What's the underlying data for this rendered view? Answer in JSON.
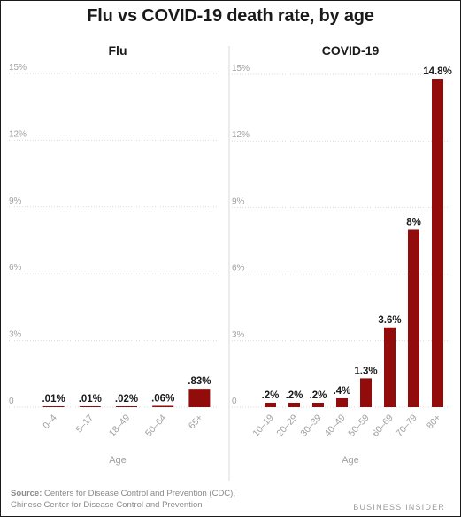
{
  "title": "Flu vs COVID-19 death rate, by age",
  "source": {
    "label": "Source:",
    "line1": "Centers for Disease Control and Prevention (CDC),",
    "line2": "Chinese Center for Disease Control and Prevention"
  },
  "brand": "BUSINESS INSIDER",
  "colors": {
    "bar": "#930c0c",
    "grid": "#d9d9d9",
    "axis_text": "#a0a0a0"
  },
  "chart_data": [
    {
      "type": "bar",
      "title": "Flu",
      "xlabel": "Age",
      "ylabel": "",
      "ylim": [
        0,
        15
      ],
      "yticks": [
        0,
        3,
        6,
        9,
        12,
        15
      ],
      "ytick_labels": [
        "0",
        "3%",
        "6%",
        "9%",
        "12%",
        "15%"
      ],
      "grid": true,
      "categories": [
        "0–4",
        "5–17",
        "18–49",
        "50–64",
        "65+"
      ],
      "values": [
        0.01,
        0.01,
        0.02,
        0.06,
        0.83
      ],
      "data_labels": [
        ".01%",
        ".01%",
        ".02%",
        ".06%",
        ".83%"
      ]
    },
    {
      "type": "bar",
      "title": "COVID-19",
      "xlabel": "Age",
      "ylabel": "",
      "ylim": [
        0,
        15
      ],
      "yticks": [
        0,
        3,
        6,
        9,
        12,
        15
      ],
      "ytick_labels": [
        "0",
        "3%",
        "6%",
        "9%",
        "12%",
        "15%"
      ],
      "grid": true,
      "categories": [
        "10–19",
        "20–29",
        "30–39",
        "40–49",
        "50–59",
        "60–69",
        "70–79",
        "80+"
      ],
      "values": [
        0.2,
        0.2,
        0.2,
        0.4,
        1.3,
        3.6,
        8,
        14.8
      ],
      "data_labels": [
        ".2%",
        ".2%",
        ".2%",
        ".4%",
        "1.3%",
        "3.6%",
        "8%",
        "14.8%"
      ]
    }
  ]
}
